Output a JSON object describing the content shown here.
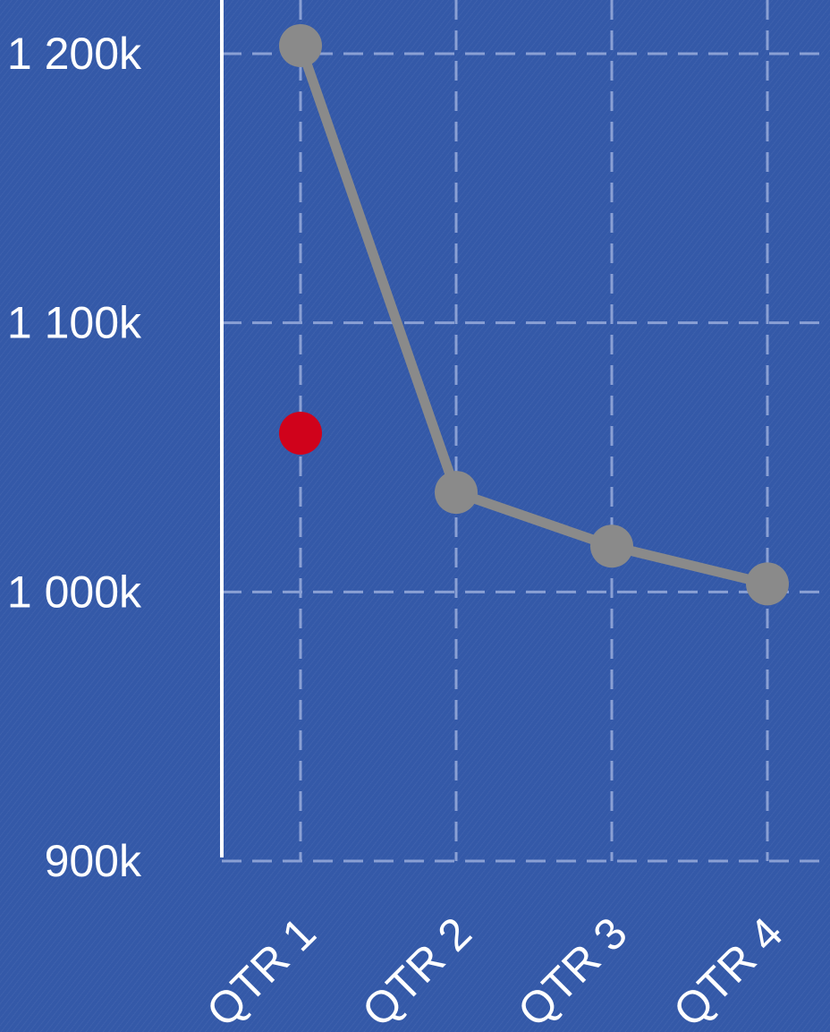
{
  "chart_data": {
    "type": "line",
    "categories": [
      "QTR 1",
      "QTR 2",
      "QTR 3",
      "QTR 4"
    ],
    "y_ticks": [
      "900k",
      "1 000k",
      "1 100k",
      "1 200k"
    ],
    "ylim": [
      900000,
      1200000
    ],
    "grid": true,
    "series": [
      {
        "values": [
          1203000,
          1037000,
          1017000,
          1003000
        ],
        "color": "#8a8a8a"
      }
    ],
    "extra_points": [
      {
        "category": "QTR 1",
        "value": 1059000,
        "color": "#d0021b"
      }
    ],
    "colors": {
      "background": "#3459a8",
      "axis": "#ffffff",
      "grid": "#8aa0d4",
      "text": "#ffffff"
    }
  }
}
